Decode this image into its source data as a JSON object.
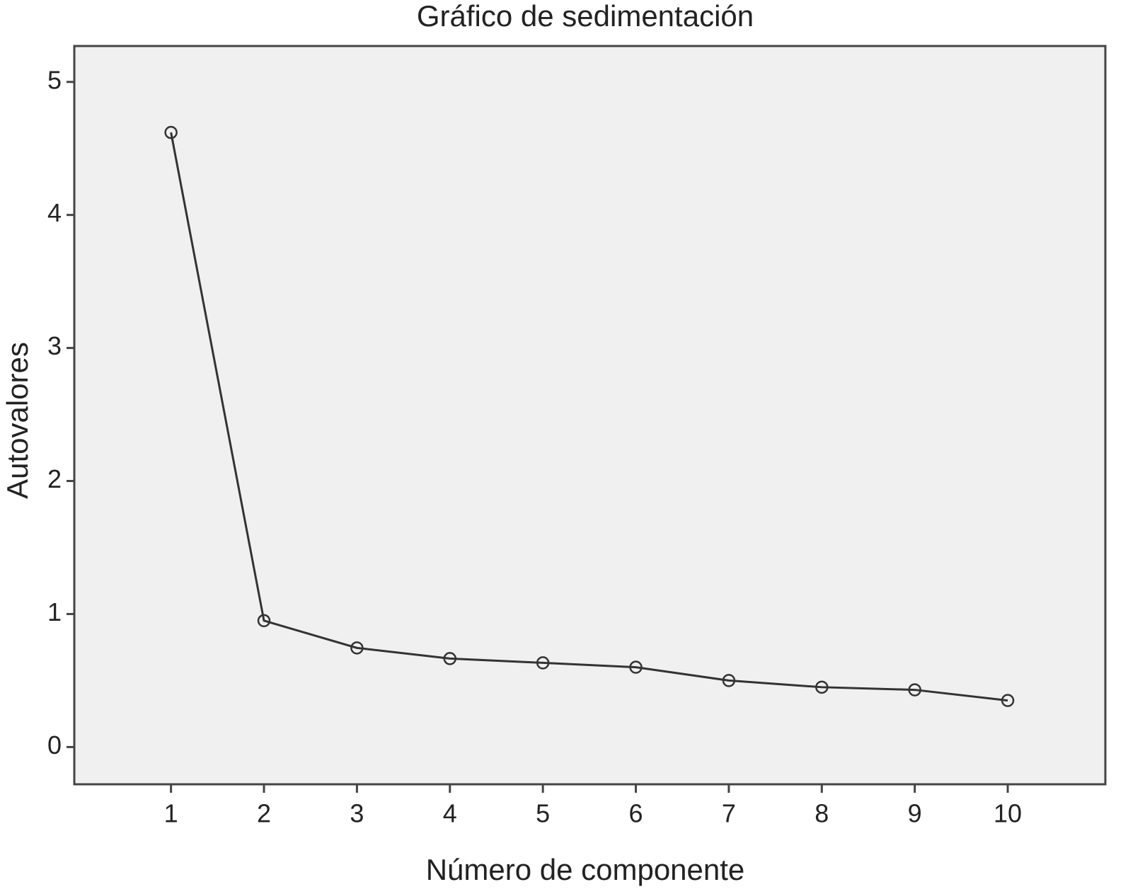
{
  "chart_data": {
    "type": "line",
    "title": "Gráfico de sedimentación",
    "x_label": "Número de componente",
    "y_label": "Autovalores",
    "x": [
      1,
      2,
      3,
      4,
      5,
      6,
      7,
      8,
      9,
      10
    ],
    "values": [
      4.62,
      0.95,
      0.745,
      0.665,
      0.633,
      0.6,
      0.5,
      0.45,
      0.43,
      0.35
    ],
    "color": "#333333",
    "xlim": [
      -0.04,
      11.05
    ],
    "xticks": [
      1,
      2,
      3,
      4,
      5,
      6,
      7,
      8,
      9,
      10
    ],
    "ylim": [
      -0.28,
      5.27
    ],
    "yticks": [
      0,
      1,
      2,
      3,
      4,
      5
    ]
  }
}
